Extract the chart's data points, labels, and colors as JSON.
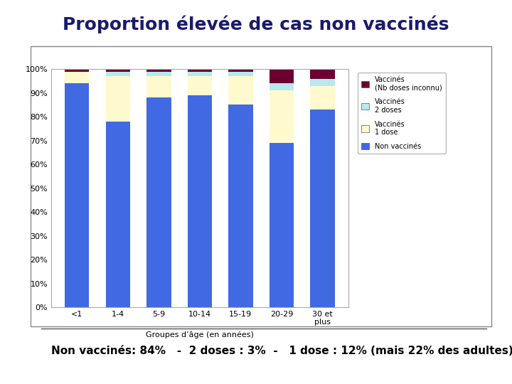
{
  "title": "Proportion élevée de cas non vaccinés",
  "subtitle": "Non vaccinés: 84%   -  2 doses : 3%  -   1 dose : 12% (mais 22% des adultes)",
  "xlabel": "Groupes d’âge (en années)",
  "categories": [
    "<1",
    "1-4",
    "5-9",
    "10-14",
    "15-19",
    "20-29",
    "30 et\nplus"
  ],
  "non_vaccines": [
    94,
    78,
    88,
    89,
    85,
    69,
    83
  ],
  "vaccines_1dose": [
    5,
    19,
    9,
    8,
    12,
    22,
    10
  ],
  "vaccines_2doses": [
    0,
    2,
    2,
    2,
    2,
    3,
    3
  ],
  "vaccines_inconnu": [
    1,
    1,
    1,
    1,
    1,
    6,
    4
  ],
  "color_non_vaccines": "#4169e1",
  "color_1dose": "#fffacd",
  "color_2doses": "#b8e8f0",
  "color_inconnu": "#6b0030",
  "legend_labels": [
    "Vaccinés\n(Nb doses inconnu)",
    "Vaccinés\n2 doses",
    "Vaccinés\n1 dose",
    "Non vaccinés"
  ],
  "background_color": "#ffffff",
  "title_color": "#1a1a6e",
  "title_fontsize": 18,
  "subtitle_fontsize": 11,
  "ylim": [
    0,
    100
  ],
  "yticks": [
    0,
    10,
    20,
    30,
    40,
    50,
    60,
    70,
    80,
    90,
    100
  ],
  "ytick_labels": [
    "0%",
    "10%",
    "20%",
    "30%",
    "40%",
    "50%",
    "60%",
    "70%",
    "80%",
    "90%",
    "100%"
  ]
}
